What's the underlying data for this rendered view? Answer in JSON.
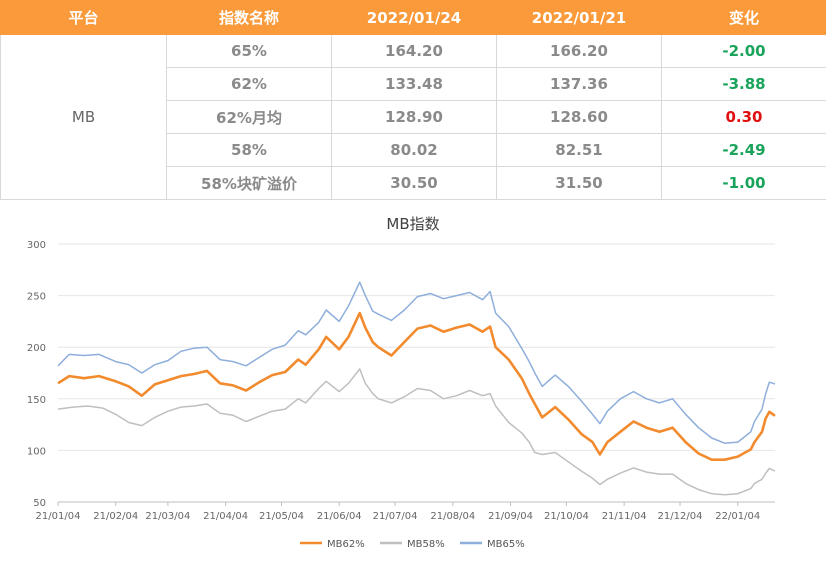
{
  "table": {
    "headers": [
      "平台",
      "指数名称",
      "2022/01/24",
      "2022/01/21",
      "变化"
    ],
    "platform": "MB",
    "rows": [
      {
        "name": "65%",
        "v1": "164.20",
        "v2": "166.20",
        "change": "-2.00",
        "status": "neg"
      },
      {
        "name": "62%",
        "v1": "133.48",
        "v2": "137.36",
        "change": "-3.88",
        "status": "neg"
      },
      {
        "name": "62%月均",
        "v1": "128.90",
        "v2": "128.60",
        "change": "0.30",
        "status": "pos"
      },
      {
        "name": "58%",
        "v1": "80.02",
        "v2": "82.51",
        "change": "-2.49",
        "status": "neg"
      },
      {
        "name": "58%块矿溢价",
        "v1": "30.50",
        "v2": "31.50",
        "change": "-1.00",
        "status": "neg"
      }
    ],
    "colors": {
      "header_bg": "#fa9a3b",
      "negative": "#1aa35a",
      "positive": "#e01010"
    }
  },
  "chart_data": {
    "type": "line",
    "title": "MB指数",
    "xlabel": "",
    "ylabel": "",
    "ylim": [
      50,
      300
    ],
    "yticks": [
      50,
      100,
      150,
      200,
      250,
      300
    ],
    "grid": true,
    "legend_position": "bottom",
    "x_ticks": [
      "21/01/04",
      "21/02/04",
      "21/03/04",
      "21/04/04",
      "21/05/04",
      "21/06/04",
      "21/07/04",
      "21/08/04",
      "21/09/04",
      "21/10/04",
      "21/11/04",
      "21/12/04",
      "22/01/04"
    ],
    "x_range": [
      "2021-01-04",
      "2022-01-24"
    ],
    "series": [
      {
        "name": "MB62%",
        "color": "#f28a2e",
        "points": [
          [
            "2021-01-04",
            165
          ],
          [
            "2021-01-10",
            172
          ],
          [
            "2021-01-18",
            170
          ],
          [
            "2021-01-26",
            172
          ],
          [
            "2021-02-04",
            167
          ],
          [
            "2021-02-11",
            162
          ],
          [
            "2021-02-18",
            153
          ],
          [
            "2021-02-25",
            164
          ],
          [
            "2021-03-04",
            168
          ],
          [
            "2021-03-11",
            172
          ],
          [
            "2021-03-18",
            174
          ],
          [
            "2021-03-25",
            177
          ],
          [
            "2021-04-01",
            165
          ],
          [
            "2021-04-08",
            163
          ],
          [
            "2021-04-15",
            158
          ],
          [
            "2021-04-22",
            166
          ],
          [
            "2021-04-29",
            173
          ],
          [
            "2021-05-06",
            176
          ],
          [
            "2021-05-13",
            188
          ],
          [
            "2021-05-17",
            183
          ],
          [
            "2021-05-24",
            198
          ],
          [
            "2021-05-28",
            210
          ],
          [
            "2021-06-04",
            198
          ],
          [
            "2021-06-09",
            210
          ],
          [
            "2021-06-15",
            233
          ],
          [
            "2021-06-18",
            219
          ],
          [
            "2021-06-22",
            205
          ],
          [
            "2021-06-25",
            200
          ],
          [
            "2021-07-02",
            192
          ],
          [
            "2021-07-09",
            205
          ],
          [
            "2021-07-16",
            218
          ],
          [
            "2021-07-23",
            221
          ],
          [
            "2021-07-30",
            215
          ],
          [
            "2021-08-06",
            219
          ],
          [
            "2021-08-13",
            222
          ],
          [
            "2021-08-20",
            215
          ],
          [
            "2021-08-24",
            220
          ],
          [
            "2021-08-27",
            200
          ],
          [
            "2021-09-03",
            188
          ],
          [
            "2021-09-10",
            170
          ],
          [
            "2021-09-14",
            155
          ],
          [
            "2021-09-17",
            145
          ],
          [
            "2021-09-21",
            132
          ],
          [
            "2021-09-28",
            142
          ],
          [
            "2021-10-05",
            130
          ],
          [
            "2021-10-12",
            116
          ],
          [
            "2021-10-18",
            108
          ],
          [
            "2021-10-22",
            96
          ],
          [
            "2021-10-26",
            108
          ],
          [
            "2021-11-02",
            118
          ],
          [
            "2021-11-09",
            128
          ],
          [
            "2021-11-16",
            122
          ],
          [
            "2021-11-23",
            118
          ],
          [
            "2021-11-30",
            122
          ],
          [
            "2021-12-07",
            108
          ],
          [
            "2021-12-14",
            97
          ],
          [
            "2021-12-21",
            91
          ],
          [
            "2021-12-28",
            91
          ],
          [
            "2022-01-04",
            94
          ],
          [
            "2022-01-11",
            101
          ],
          [
            "2022-01-13",
            108
          ],
          [
            "2022-01-17",
            118
          ],
          [
            "2022-01-19",
            131
          ],
          [
            "2022-01-21",
            137.36
          ],
          [
            "2022-01-24",
            133.48
          ]
        ]
      },
      {
        "name": "MB58%",
        "color": "#bfbfbf",
        "points": [
          [
            "2021-01-04",
            140
          ],
          [
            "2021-01-12",
            142
          ],
          [
            "2021-01-20",
            143
          ],
          [
            "2021-01-28",
            141
          ],
          [
            "2021-02-04",
            135
          ],
          [
            "2021-02-11",
            127
          ],
          [
            "2021-02-18",
            124
          ],
          [
            "2021-02-25",
            132
          ],
          [
            "2021-03-04",
            138
          ],
          [
            "2021-03-11",
            142
          ],
          [
            "2021-03-18",
            143
          ],
          [
            "2021-03-25",
            145
          ],
          [
            "2021-04-01",
            136
          ],
          [
            "2021-04-08",
            134
          ],
          [
            "2021-04-15",
            128
          ],
          [
            "2021-04-22",
            133
          ],
          [
            "2021-04-29",
            138
          ],
          [
            "2021-05-06",
            140
          ],
          [
            "2021-05-13",
            150
          ],
          [
            "2021-05-17",
            146
          ],
          [
            "2021-05-24",
            160
          ],
          [
            "2021-05-28",
            167
          ],
          [
            "2021-06-04",
            157
          ],
          [
            "2021-06-09",
            165
          ],
          [
            "2021-06-15",
            179
          ],
          [
            "2021-06-18",
            165
          ],
          [
            "2021-06-22",
            155
          ],
          [
            "2021-06-25",
            150
          ],
          [
            "2021-07-02",
            146
          ],
          [
            "2021-07-09",
            152
          ],
          [
            "2021-07-16",
            160
          ],
          [
            "2021-07-23",
            158
          ],
          [
            "2021-07-30",
            150
          ],
          [
            "2021-08-06",
            153
          ],
          [
            "2021-08-13",
            158
          ],
          [
            "2021-08-20",
            153
          ],
          [
            "2021-08-24",
            155
          ],
          [
            "2021-08-27",
            143
          ],
          [
            "2021-09-03",
            127
          ],
          [
            "2021-09-10",
            117
          ],
          [
            "2021-09-14",
            108
          ],
          [
            "2021-09-17",
            98
          ],
          [
            "2021-09-21",
            96
          ],
          [
            "2021-09-28",
            98
          ],
          [
            "2021-10-05",
            89
          ],
          [
            "2021-10-12",
            80
          ],
          [
            "2021-10-18",
            73
          ],
          [
            "2021-10-22",
            67
          ],
          [
            "2021-10-26",
            72
          ],
          [
            "2021-11-02",
            78
          ],
          [
            "2021-11-09",
            83
          ],
          [
            "2021-11-16",
            79
          ],
          [
            "2021-11-23",
            77
          ],
          [
            "2021-11-30",
            77
          ],
          [
            "2021-12-07",
            68
          ],
          [
            "2021-12-14",
            62
          ],
          [
            "2021-12-21",
            58
          ],
          [
            "2021-12-28",
            57
          ],
          [
            "2022-01-04",
            58
          ],
          [
            "2022-01-11",
            63
          ],
          [
            "2022-01-13",
            68
          ],
          [
            "2022-01-17",
            72
          ],
          [
            "2022-01-19",
            78
          ],
          [
            "2022-01-21",
            82.51
          ],
          [
            "2022-01-24",
            80.02
          ]
        ]
      },
      {
        "name": "MB65%",
        "color": "#8eaedb",
        "points": [
          [
            "2021-01-04",
            182
          ],
          [
            "2021-01-10",
            193
          ],
          [
            "2021-01-18",
            192
          ],
          [
            "2021-01-26",
            193
          ],
          [
            "2021-02-04",
            186
          ],
          [
            "2021-02-11",
            183
          ],
          [
            "2021-02-18",
            175
          ],
          [
            "2021-02-25",
            183
          ],
          [
            "2021-03-04",
            187
          ],
          [
            "2021-03-11",
            196
          ],
          [
            "2021-03-18",
            199
          ],
          [
            "2021-03-25",
            200
          ],
          [
            "2021-04-01",
            188
          ],
          [
            "2021-04-08",
            186
          ],
          [
            "2021-04-15",
            182
          ],
          [
            "2021-04-22",
            190
          ],
          [
            "2021-04-29",
            198
          ],
          [
            "2021-05-06",
            202
          ],
          [
            "2021-05-13",
            216
          ],
          [
            "2021-05-17",
            212
          ],
          [
            "2021-05-24",
            224
          ],
          [
            "2021-05-28",
            236
          ],
          [
            "2021-06-04",
            225
          ],
          [
            "2021-06-09",
            240
          ],
          [
            "2021-06-15",
            263
          ],
          [
            "2021-06-18",
            250
          ],
          [
            "2021-06-22",
            235
          ],
          [
            "2021-06-25",
            232
          ],
          [
            "2021-07-02",
            226
          ],
          [
            "2021-07-09",
            236
          ],
          [
            "2021-07-16",
            249
          ],
          [
            "2021-07-23",
            252
          ],
          [
            "2021-07-30",
            247
          ],
          [
            "2021-08-06",
            250
          ],
          [
            "2021-08-13",
            253
          ],
          [
            "2021-08-20",
            246
          ],
          [
            "2021-08-24",
            254
          ],
          [
            "2021-08-27",
            233
          ],
          [
            "2021-09-03",
            220
          ],
          [
            "2021-09-10",
            199
          ],
          [
            "2021-09-14",
            186
          ],
          [
            "2021-09-17",
            175
          ],
          [
            "2021-09-21",
            162
          ],
          [
            "2021-09-28",
            173
          ],
          [
            "2021-10-05",
            162
          ],
          [
            "2021-10-12",
            148
          ],
          [
            "2021-10-18",
            135
          ],
          [
            "2021-10-22",
            126
          ],
          [
            "2021-10-26",
            138
          ],
          [
            "2021-11-02",
            150
          ],
          [
            "2021-11-09",
            157
          ],
          [
            "2021-11-16",
            150
          ],
          [
            "2021-11-23",
            146
          ],
          [
            "2021-11-30",
            150
          ],
          [
            "2021-12-07",
            135
          ],
          [
            "2021-12-14",
            122
          ],
          [
            "2021-12-21",
            112
          ],
          [
            "2021-12-28",
            107
          ],
          [
            "2022-01-04",
            108
          ],
          [
            "2022-01-11",
            118
          ],
          [
            "2022-01-13",
            128
          ],
          [
            "2022-01-17",
            140
          ],
          [
            "2022-01-19",
            155
          ],
          [
            "2022-01-21",
            166.2
          ],
          [
            "2022-01-24",
            164.2
          ]
        ]
      }
    ]
  }
}
